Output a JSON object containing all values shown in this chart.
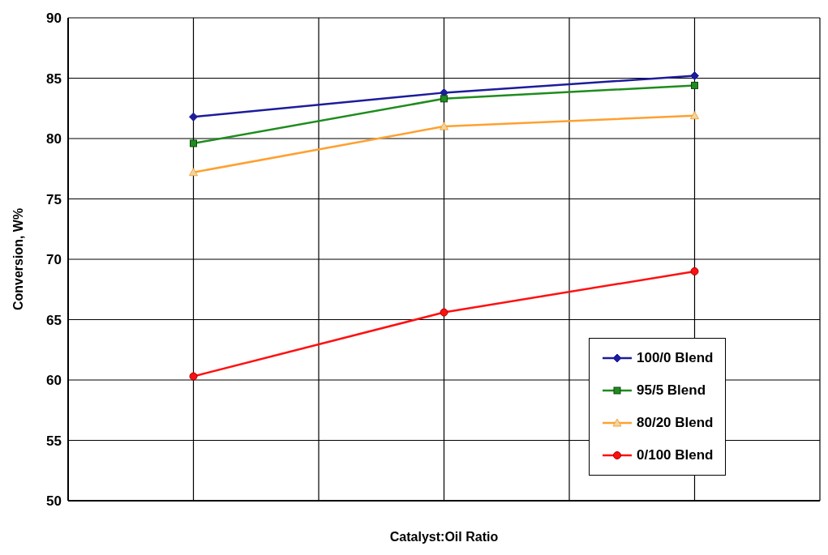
{
  "chart_data": {
    "type": "line",
    "xlabel": "Catalyst:Oil Ratio",
    "ylabel": "Conversion, W%",
    "categories": [
      null,
      null,
      null
    ],
    "ylim": [
      50,
      90
    ],
    "yticks": [
      50,
      55,
      60,
      65,
      70,
      75,
      80,
      85,
      90
    ],
    "tick_labels": "y",
    "grid": true,
    "legend": "bottom right",
    "line_style": "solid",
    "series": [
      {
        "name": "100/0 Blend",
        "color": "#1c1c9c",
        "marker": "diamond",
        "values": [
          81.8,
          83.8,
          85.2
        ]
      },
      {
        "name": "95/5 Blend",
        "color": "#1e8c1e",
        "marker": "square",
        "values": [
          79.6,
          83.3,
          84.4
        ]
      },
      {
        "name": "80/20 Blend",
        "color": "#ffa030",
        "marker": "triangle",
        "values": [
          77.2,
          81.0,
          81.9
        ]
      },
      {
        "name": "0/100 Blend",
        "color": "#ff1010",
        "marker": "circle",
        "values": [
          60.3,
          65.6,
          69.0
        ]
      }
    ]
  }
}
